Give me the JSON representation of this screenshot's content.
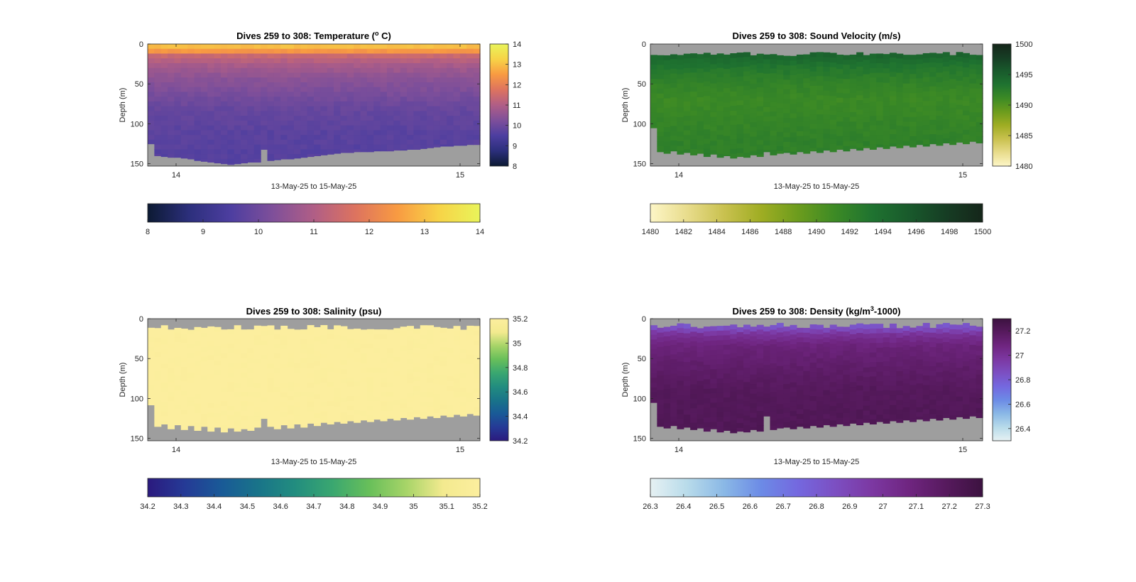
{
  "chart_data": [
    {
      "type": "heatmap",
      "title": "Dives 259 to 308: Temperature (",
      "title_sup": "o",
      "title_suffix": " C)",
      "xlabel": "13-May-25 to 15-May-25",
      "ylabel": "Depth (m)",
      "x_ticks": [
        "14",
        "15"
      ],
      "x_range_days": [
        13.9,
        15.07
      ],
      "y_ticks": [
        0,
        50,
        100,
        150
      ],
      "ylim": [
        0,
        153
      ],
      "y_reversed": true,
      "clim": [
        8,
        14
      ],
      "vertical_colorbar_ticks": [
        "8",
        "9",
        "10",
        "11",
        "12",
        "13",
        "14"
      ],
      "horizontal_colorbar_ticks": [
        "8",
        "9",
        "10",
        "11",
        "12",
        "13",
        "14"
      ],
      "colormap": [
        "#0c1a33",
        "#2c2f7c",
        "#4d3ea0",
        "#7e4f9a",
        "#b05e86",
        "#dd735f",
        "#f89a42",
        "#f7d347",
        "#e9f45a"
      ],
      "nodata_color": "#9e9e9e",
      "bottom_depth_profile": [
        125,
        140,
        141,
        142,
        142,
        143,
        144,
        146,
        147,
        148,
        149,
        150,
        151,
        150,
        149,
        148,
        148,
        132,
        146,
        145,
        144,
        144,
        143,
        142,
        141,
        140,
        139,
        138,
        137,
        136,
        136,
        135,
        135,
        135,
        134,
        134,
        134,
        133,
        133,
        132,
        132,
        131,
        130,
        129,
        128,
        128,
        127,
        127,
        126,
        126
      ],
      "top_gap_depth": 0,
      "profile_value_by_depth": [
        [
          0,
          13.2
        ],
        [
          8,
          12.6
        ],
        [
          15,
          11.4
        ],
        [
          25,
          10.9
        ],
        [
          40,
          10.5
        ],
        [
          60,
          10.2
        ],
        [
          80,
          9.9
        ],
        [
          110,
          9.7
        ],
        [
          150,
          9.6
        ]
      ]
    },
    {
      "type": "heatmap",
      "title": "Dives 259 to 308: Sound Velocity (m/s)",
      "xlabel": "13-May-25 to 15-May-25",
      "ylabel": "Depth (m)",
      "x_ticks": [
        "14",
        "15"
      ],
      "x_range_days": [
        13.9,
        15.07
      ],
      "y_ticks": [
        0,
        50,
        100,
        150
      ],
      "ylim": [
        0,
        153
      ],
      "y_reversed": true,
      "clim": [
        1480,
        1500
      ],
      "vertical_colorbar_ticks": [
        "1480",
        "1485",
        "1490",
        "1495",
        "1500"
      ],
      "horizontal_colorbar_ticks": [
        "1480",
        "1482",
        "1484",
        "1486",
        "1488",
        "1490",
        "1492",
        "1494",
        "1496",
        "1498",
        "1500"
      ],
      "colormap": [
        "#fdf6c7",
        "#e8dc8c",
        "#c9c14f",
        "#9fad23",
        "#6c9c1d",
        "#3c8a25",
        "#1f7330",
        "#195a2c",
        "#163d24",
        "#15261a"
      ],
      "nodata_color": "#9e9e9e",
      "bottom_depth_profile": [
        105,
        135,
        137,
        134,
        138,
        136,
        139,
        137,
        141,
        138,
        142,
        140,
        143,
        141,
        142,
        139,
        141,
        135,
        139,
        137,
        136,
        138,
        135,
        137,
        134,
        136,
        133,
        135,
        132,
        134,
        131,
        133,
        130,
        132,
        129,
        131,
        128,
        130,
        127,
        129,
        126,
        128,
        125,
        127,
        124,
        126,
        123,
        125,
        122,
        124
      ],
      "top_gap_depth_pattern": [
        10,
        15
      ],
      "profile_value_by_depth": [
        [
          5,
          1495.5
        ],
        [
          15,
          1494.5
        ],
        [
          30,
          1493.0
        ],
        [
          50,
          1491.8
        ],
        [
          70,
          1491.2
        ],
        [
          90,
          1491.5
        ],
        [
          120,
          1492.0
        ],
        [
          150,
          1492.2
        ]
      ]
    },
    {
      "type": "heatmap",
      "title": "Dives 259 to 308: Salinity (psu)",
      "xlabel": "13-May-25 to 15-May-25",
      "ylabel": "Depth (m)",
      "x_ticks": [
        "14",
        "15"
      ],
      "x_range_days": [
        13.9,
        15.07
      ],
      "y_ticks": [
        0,
        50,
        100,
        150
      ],
      "ylim": [
        0,
        153
      ],
      "y_reversed": true,
      "clim": [
        34.2,
        35.2
      ],
      "vertical_colorbar_ticks": [
        "34.2",
        "34.4",
        "34.6",
        "34.8",
        "35",
        "35.2"
      ],
      "horizontal_colorbar_ticks": [
        "34.2",
        "34.3",
        "34.4",
        "34.5",
        "34.6",
        "34.7",
        "34.8",
        "34.9",
        "35",
        "35.1",
        "35.2"
      ],
      "colormap": [
        "#2b1a7e",
        "#253a96",
        "#195a97",
        "#197489",
        "#228d7f",
        "#3aa770",
        "#68bf5a",
        "#a7d468",
        "#f3ea8f",
        "#fcee9e"
      ],
      "nodata_color": "#9e9e9e",
      "bottom_depth_profile": [
        108,
        135,
        132,
        138,
        133,
        139,
        134,
        140,
        135,
        141,
        136,
        142,
        137,
        141,
        138,
        140,
        136,
        125,
        135,
        138,
        133,
        137,
        132,
        136,
        131,
        134,
        130,
        132,
        129,
        131,
        128,
        130,
        127,
        129,
        126,
        128,
        125,
        127,
        124,
        126,
        123,
        125,
        122,
        124,
        121,
        123,
        120,
        122,
        119,
        121
      ],
      "top_gap_depth_pattern": [
        8,
        14
      ],
      "profile_value_by_depth": [
        [
          5,
          35.2
        ],
        [
          150,
          35.2
        ]
      ]
    },
    {
      "type": "heatmap",
      "title": "Dives 259 to 308: Density (kg/m",
      "title_sup": "3",
      "title_suffix": "-1000)",
      "xlabel": "13-May-25 to 15-May-25",
      "ylabel": "Depth (m)",
      "x_ticks": [
        "14",
        "15"
      ],
      "x_range_days": [
        13.9,
        15.07
      ],
      "y_ticks": [
        0,
        50,
        100,
        150
      ],
      "ylim": [
        0,
        153
      ],
      "y_reversed": true,
      "clim": [
        26.3,
        27.3
      ],
      "vertical_colorbar_ticks": [
        "26.4",
        "26.6",
        "26.8",
        "27",
        "27.2"
      ],
      "vertical_colorbar_tick_values": [
        26.4,
        26.6,
        26.8,
        27.0,
        27.2
      ],
      "horizontal_colorbar_ticks": [
        "26.3",
        "26.4",
        "26.5",
        "26.6",
        "26.7",
        "26.8",
        "26.9",
        "27",
        "27.1",
        "27.2",
        "27.3"
      ],
      "colormap": [
        "#e6f1f3",
        "#b8dbea",
        "#8ab8e6",
        "#6c8be6",
        "#7468df",
        "#7c4fc2",
        "#7c38a2",
        "#6f2580",
        "#571a5e",
        "#3c1240"
      ],
      "nodata_color": "#9e9e9e",
      "bottom_depth_profile": [
        105,
        135,
        137,
        134,
        138,
        136,
        139,
        137,
        141,
        138,
        142,
        140,
        143,
        141,
        142,
        139,
        141,
        122,
        139,
        137,
        136,
        138,
        135,
        137,
        134,
        136,
        133,
        135,
        132,
        134,
        131,
        133,
        130,
        132,
        129,
        131,
        128,
        130,
        127,
        129,
        126,
        128,
        125,
        127,
        124,
        126,
        123,
        125,
        122,
        124
      ],
      "top_gap_depth_pattern": [
        5,
        12
      ],
      "profile_value_by_depth": [
        [
          5,
          26.8
        ],
        [
          12,
          26.85
        ],
        [
          20,
          27.0
        ],
        [
          35,
          27.1
        ],
        [
          60,
          27.15
        ],
        [
          90,
          27.2
        ],
        [
          150,
          27.22
        ]
      ]
    }
  ]
}
